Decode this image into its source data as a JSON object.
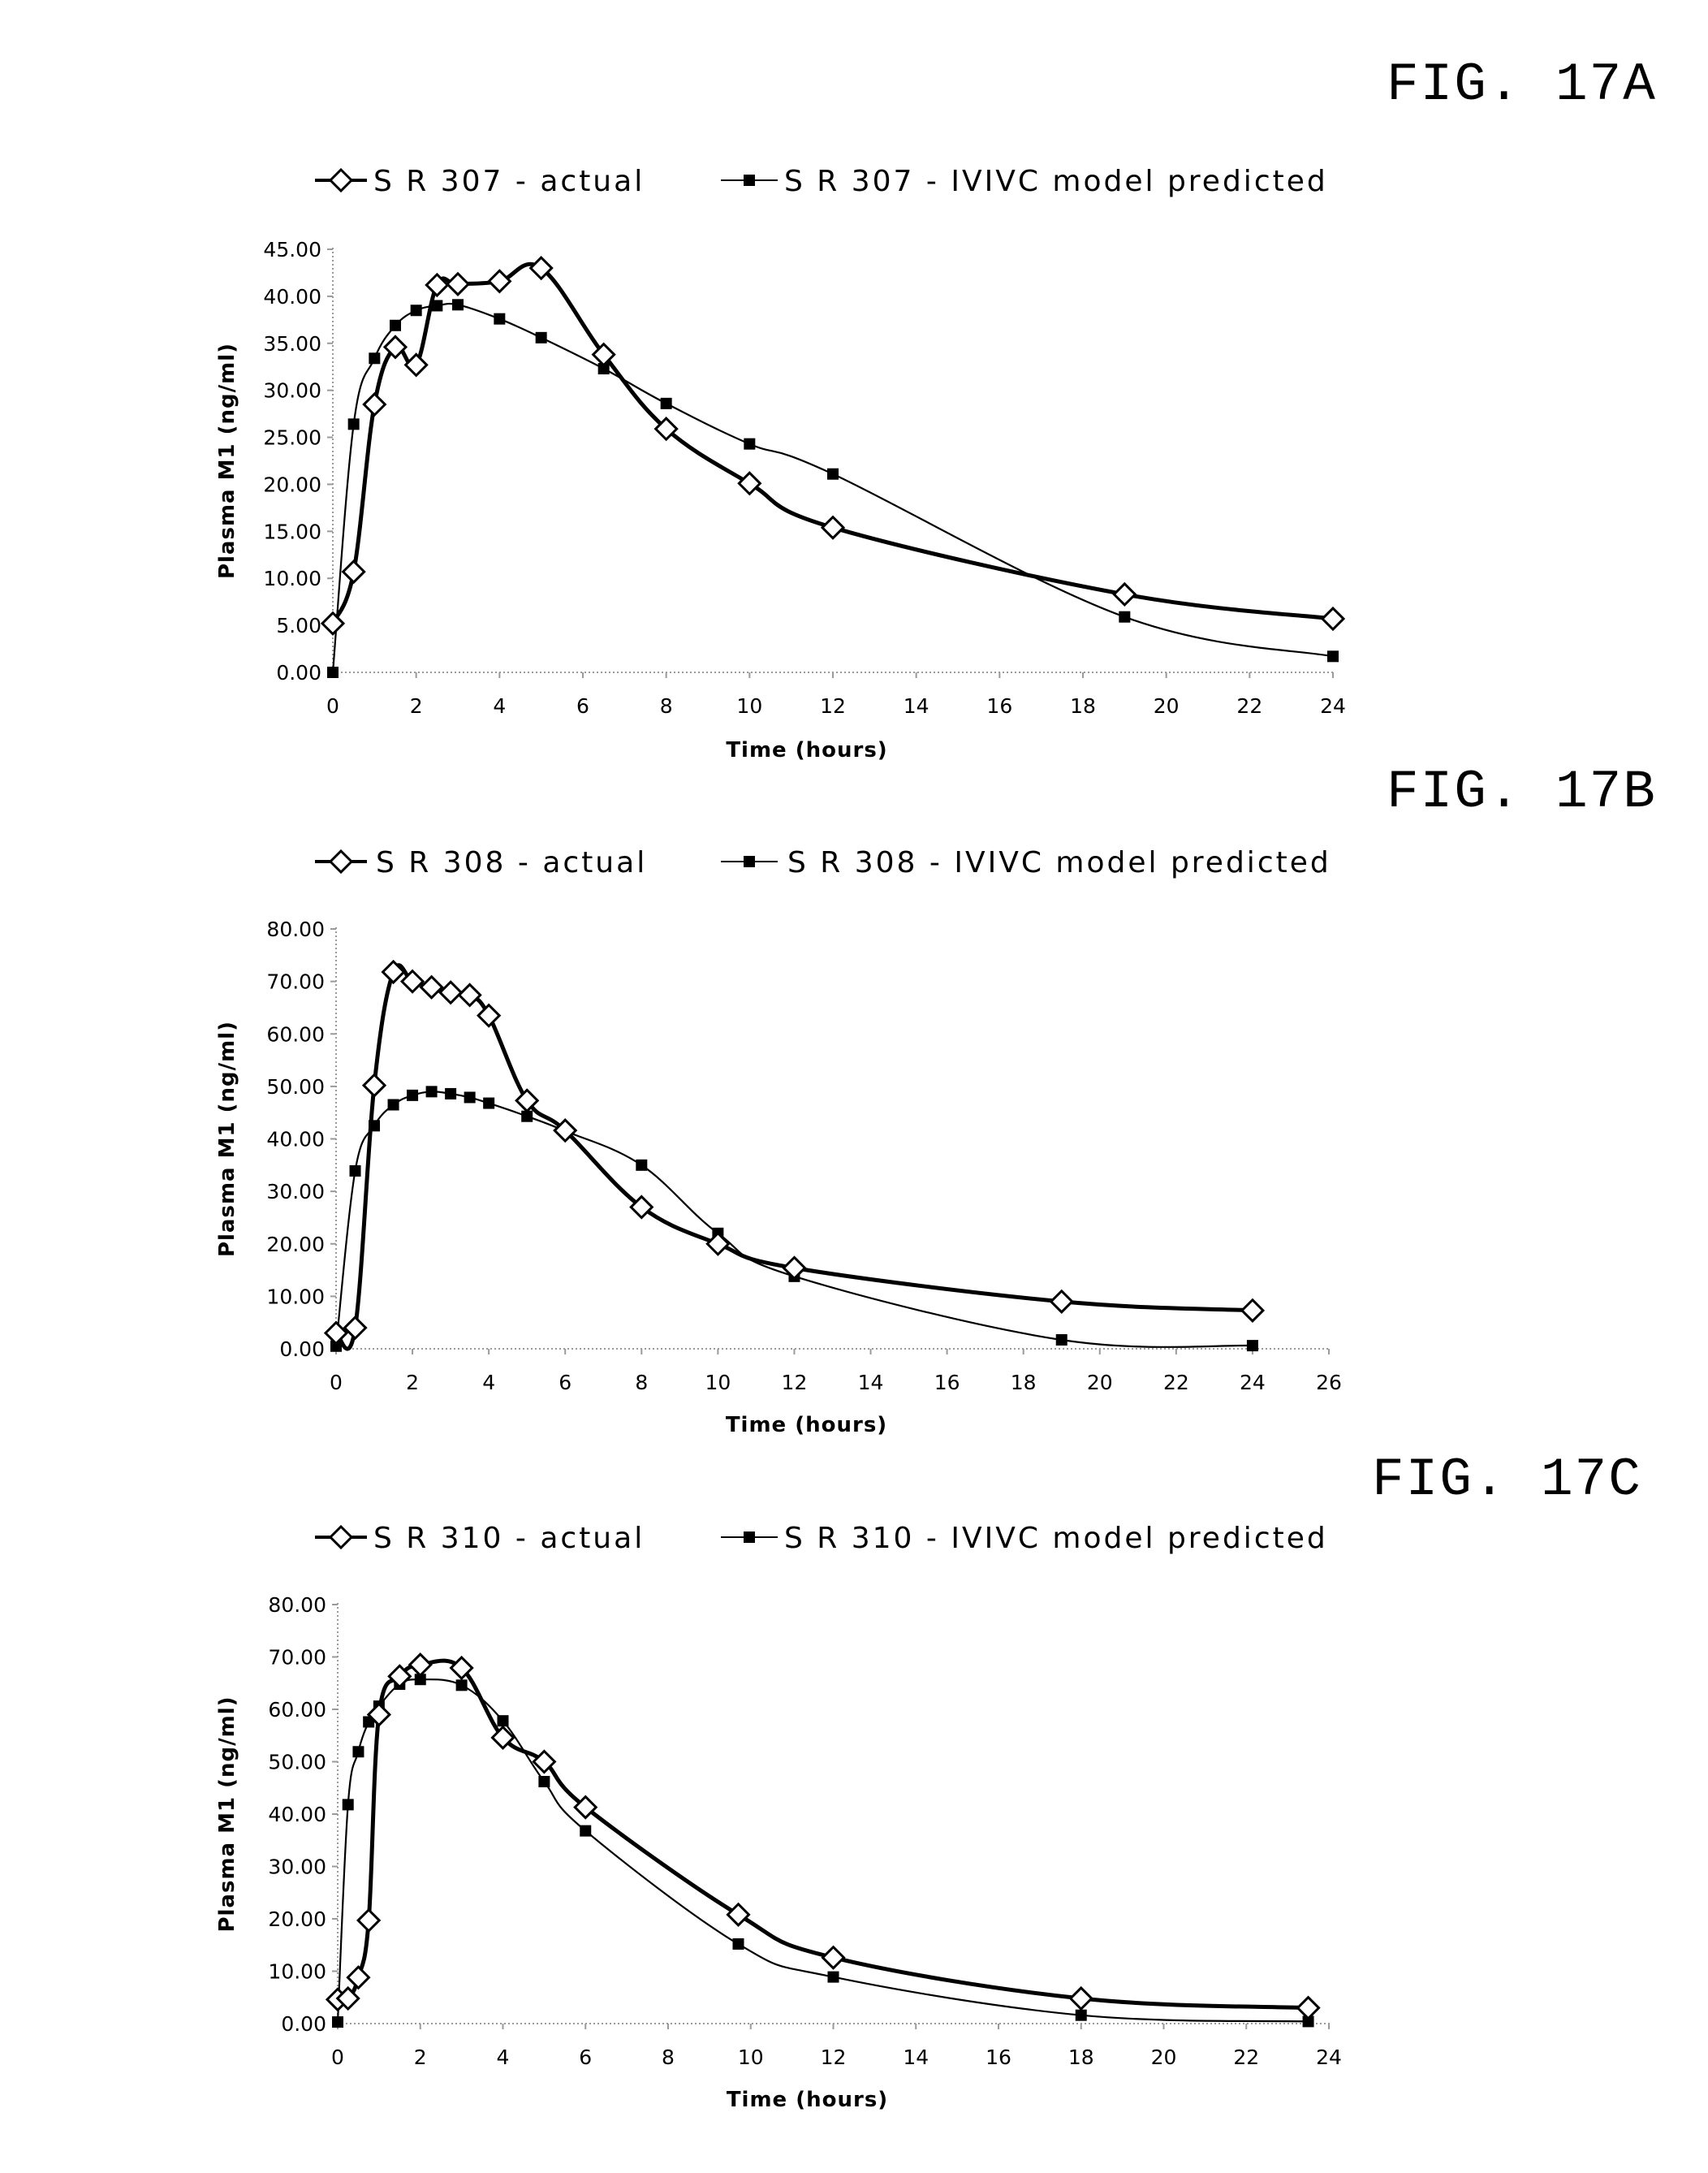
{
  "colors": {
    "line": "#000000",
    "axis": "#9a9a9a",
    "marker_open": "#ffffff",
    "marker_filled": "#000000"
  },
  "chart_data": [
    {
      "type": "line",
      "figure_label": "FIG. 17A",
      "xlabel": "Time (hours)",
      "ylabel": "Plasma M1 (ng/ml)",
      "xlim": [
        0,
        24
      ],
      "xticks": [
        "0",
        "2",
        "4",
        "6",
        "8",
        "10",
        "12",
        "14",
        "16",
        "18",
        "20",
        "22",
        "24"
      ],
      "ylim": [
        0,
        45
      ],
      "yticks": [
        "0.00",
        "5.00",
        "10.00",
        "15.00",
        "20.00",
        "25.00",
        "30.00",
        "35.00",
        "40.00",
        "45.00"
      ],
      "grid": false,
      "legend_position": "top",
      "series": [
        {
          "name": "S R 307 - actual",
          "marker": "open-diamond",
          "x": [
            0,
            0.5,
            1,
            1.5,
            2,
            2.5,
            3,
            4,
            5,
            6.5,
            8,
            10,
            12,
            19,
            24
          ],
          "y": [
            5.2,
            10.7,
            28.5,
            34.6,
            32.7,
            41.2,
            41.3,
            41.6,
            43.0,
            33.8,
            25.9,
            20.1,
            15.4,
            8.3,
            5.7
          ]
        },
        {
          "name": "S R 307 - IVIVC model predicted",
          "marker": "filled-square",
          "x": [
            0,
            0.5,
            1,
            1.5,
            2,
            2.5,
            3,
            4,
            5,
            6.5,
            8,
            10,
            12,
            19,
            24
          ],
          "y": [
            0.0,
            26.4,
            33.4,
            36.9,
            38.5,
            39.0,
            39.1,
            37.6,
            35.6,
            32.3,
            28.6,
            24.3,
            21.1,
            5.9,
            1.7
          ]
        }
      ]
    },
    {
      "type": "line",
      "figure_label": "FIG. 17B",
      "xlabel": "Time (hours)",
      "ylabel": "Plasma M1 (ng/ml)",
      "xlim": [
        0,
        26
      ],
      "xticks": [
        "0",
        "2",
        "4",
        "6",
        "8",
        "10",
        "12",
        "14",
        "16",
        "18",
        "20",
        "22",
        "24",
        "26"
      ],
      "ylim": [
        0,
        80
      ],
      "yticks": [
        "0.00",
        "10.00",
        "20.00",
        "30.00",
        "40.00",
        "50.00",
        "60.00",
        "70.00",
        "80.00"
      ],
      "grid": false,
      "legend_position": "top",
      "series": [
        {
          "name": "S R 308 - actual",
          "marker": "open-diamond",
          "x": [
            0,
            0.5,
            1,
            1.5,
            2,
            2.5,
            3,
            3.5,
            4,
            5,
            6,
            8,
            10,
            12,
            19,
            24
          ],
          "y": [
            3.0,
            4.0,
            50.2,
            71.8,
            70.0,
            68.9,
            67.9,
            67.4,
            63.5,
            47.3,
            41.6,
            27.0,
            20.0,
            15.4,
            9.0,
            7.3
          ]
        },
        {
          "name": "S R 308 - IVIVC model predicted",
          "marker": "filled-square",
          "x": [
            0,
            0.5,
            1,
            1.5,
            2,
            2.5,
            3,
            3.5,
            4,
            5,
            6,
            8,
            10,
            12,
            19,
            24
          ],
          "y": [
            0.5,
            33.9,
            42.5,
            46.5,
            48.3,
            49.0,
            48.6,
            47.9,
            46.8,
            44.3,
            41.5,
            35.0,
            22.0,
            13.8,
            1.7,
            0.6
          ]
        }
      ]
    },
    {
      "type": "line",
      "figure_label": "FIG. 17C",
      "xlabel": "Time (hours)",
      "ylabel": "Plasma M1 (ng/ml)",
      "xlim": [
        0,
        24
      ],
      "xticks": [
        "0",
        "2",
        "4",
        "6",
        "8",
        "10",
        "12",
        "14",
        "16",
        "18",
        "20",
        "22",
        "24"
      ],
      "ylim": [
        0,
        80
      ],
      "yticks": [
        "0.00",
        "10.00",
        "20.00",
        "30.00",
        "40.00",
        "50.00",
        "60.00",
        "70.00",
        "80.00"
      ],
      "grid": false,
      "legend_position": "top",
      "series": [
        {
          "name": "S R 310 - actual",
          "marker": "open-diamond",
          "x": [
            0,
            0.25,
            0.5,
            0.75,
            1,
            1.5,
            2,
            3,
            4,
            5,
            6,
            9.7,
            12,
            18,
            23.5
          ],
          "y": [
            4.6,
            4.8,
            8.8,
            19.7,
            59.0,
            66.3,
            68.5,
            67.9,
            54.6,
            50.0,
            41.3,
            20.8,
            12.6,
            4.8,
            3.0
          ]
        },
        {
          "name": "S R 310 - IVIVC model predicted",
          "marker": "filled-square",
          "x": [
            0,
            0.25,
            0.5,
            0.75,
            1,
            1.5,
            2,
            3,
            4,
            5,
            6,
            9.7,
            12,
            18,
            23.5
          ],
          "y": [
            0.3,
            41.8,
            51.9,
            57.6,
            60.6,
            64.8,
            65.7,
            64.6,
            57.8,
            46.2,
            36.8,
            15.2,
            8.9,
            1.6,
            0.4
          ]
        }
      ]
    }
  ]
}
